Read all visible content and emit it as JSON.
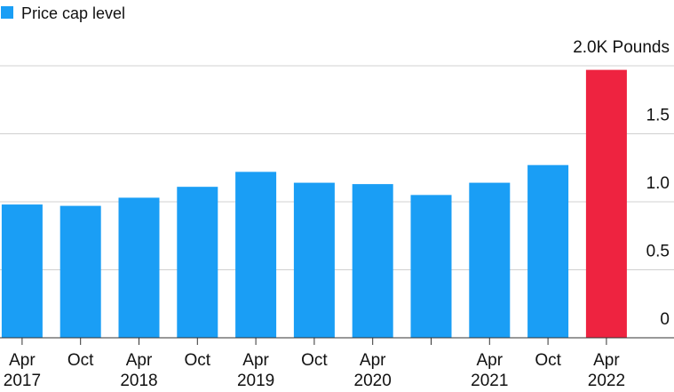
{
  "chart_data": {
    "type": "bar",
    "categories": [
      "Apr\n2017",
      "Oct",
      "Apr\n2018",
      "Oct",
      "Apr\n2019",
      "Oct",
      "Apr\n2020",
      null,
      "Apr\n2021",
      "Oct",
      "Apr\n2022"
    ],
    "series": [
      {
        "name": "Price cap level",
        "color": "#1a9ef5",
        "values": [
          0.98,
          0.97,
          1.03,
          1.11,
          1.22,
          1.14,
          1.13,
          1.05,
          1.14,
          1.27,
          1.97
        ],
        "colors": [
          "#1a9ef5",
          "#1a9ef5",
          "#1a9ef5",
          "#1a9ef5",
          "#1a9ef5",
          "#1a9ef5",
          "#1a9ef5",
          "#1a9ef5",
          "#1a9ef5",
          "#1a9ef5",
          "#ee2340"
        ]
      }
    ],
    "ylim": [
      0,
      2.0
    ],
    "yticks": [
      0,
      0.5,
      {
        "value": 1.0,
        "label": "1.0"
      },
      1.5,
      {
        "value": 2.0,
        "label": "2.0K Pounds"
      }
    ],
    "grid": true
  }
}
